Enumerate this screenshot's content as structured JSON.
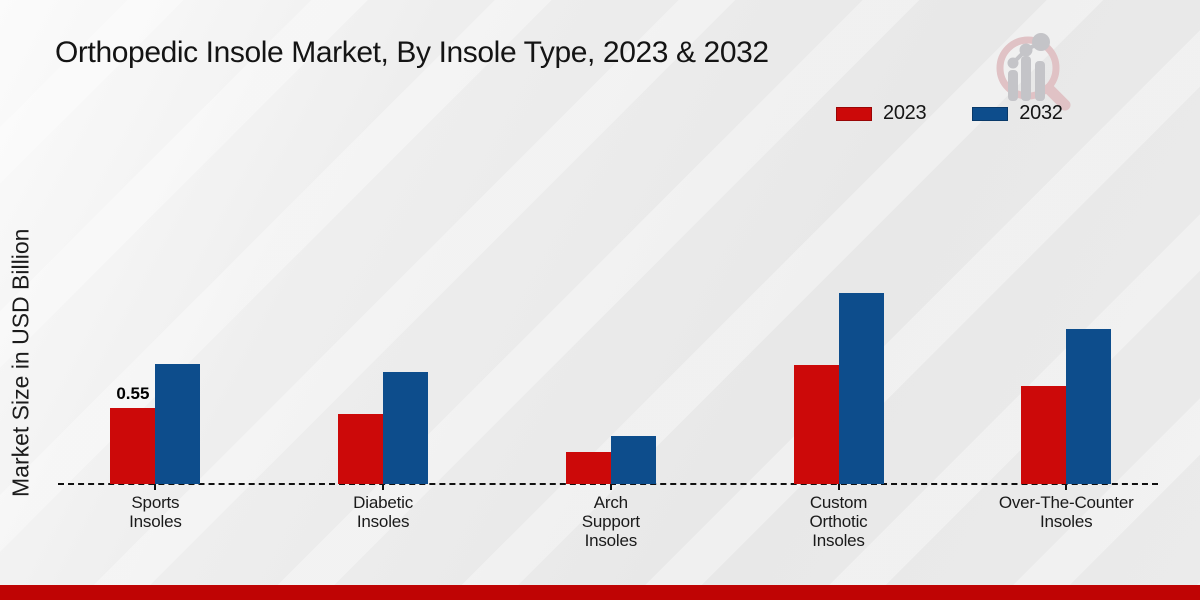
{
  "page": {
    "title": "Orthopedic Insole Market, By Insole Type, 2023 & 2032",
    "ylabel": "Market Size in USD Billion"
  },
  "colors": {
    "bar_2023": "#cc0909",
    "bar_2032": "#0d4d8c",
    "footer_bar": "#bf0404",
    "logo_pink": "#e0c2c5",
    "logo_gray": "#c4c4c8"
  },
  "legend": {
    "items": [
      {
        "label": "2023",
        "color": "#cc0909"
      },
      {
        "label": "2032",
        "color": "#0d4d8c"
      }
    ]
  },
  "chart_data": {
    "type": "bar",
    "title": "Orthopedic Insole Market, By Insole Type, 2023 & 2032",
    "xlabel": "",
    "ylabel": "Market Size in USD Billion",
    "categories": [
      "Sports Insoles",
      "Diabetic Insoles",
      "Arch Support Insoles",
      "Custom Orthotic Insoles",
      "Over-The-Counter Insoles"
    ],
    "series": [
      {
        "name": "2023",
        "color": "#cc0909",
        "values": [
          0.55,
          0.51,
          0.23,
          0.86,
          0.71
        ]
      },
      {
        "name": "2032",
        "color": "#0d4d8c",
        "values": [
          0.87,
          0.81,
          0.35,
          1.38,
          1.12
        ]
      }
    ],
    "annotations": [
      {
        "category_index": 0,
        "series_index": 0,
        "text": "0.55"
      }
    ],
    "ylim": [
      0,
      1.5
    ],
    "grid": false,
    "axis_style": "dashed-baseline-only",
    "legend_position": "top-right"
  }
}
